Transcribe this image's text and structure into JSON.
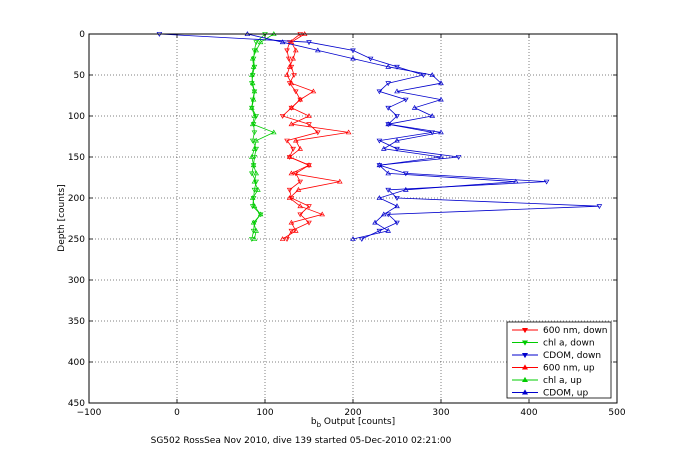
{
  "chart_data": {
    "type": "line",
    "xlabel_main": "b",
    "xlabel_sub": "b",
    "xlabel_rest": " Output [counts]",
    "ylabel": "Depth [counts]",
    "caption": "SG502 RossSea Nov 2010, dive 139 started 05-Dec-2010 02:21:00",
    "xlim": [
      -100,
      500
    ],
    "ylim": [
      0,
      450
    ],
    "y_reversed": true,
    "grid": true,
    "xticks": [
      -100,
      0,
      100,
      200,
      300,
      400,
      500
    ],
    "yticks": [
      0,
      50,
      100,
      150,
      200,
      250,
      300,
      350,
      400,
      450
    ],
    "legend_position": "bottom-right",
    "series": [
      {
        "name": "600 nm, down",
        "color": "#ff0000",
        "marker": "triangle-down",
        "y": [
          0,
          10,
          20,
          30,
          40,
          50,
          60,
          70,
          80,
          90,
          100,
          110,
          120,
          130,
          140,
          150,
          160,
          170,
          180,
          190,
          200,
          210,
          220,
          230,
          240,
          250
        ],
        "x": [
          140,
          128,
          125,
          127,
          130,
          133,
          128,
          135,
          140,
          130,
          120,
          150,
          160,
          125,
          132,
          128,
          150,
          135,
          140,
          128,
          130,
          150,
          140,
          150,
          130,
          125
        ]
      },
      {
        "name": "chl a, down",
        "color": "#00cc00",
        "marker": "triangle-down",
        "y": [
          0,
          10,
          20,
          30,
          40,
          50,
          60,
          70,
          80,
          90,
          100,
          110,
          120,
          130,
          140,
          150,
          160,
          170,
          180,
          190,
          200,
          210,
          220,
          230,
          240,
          250
        ],
        "x": [
          100,
          90,
          88,
          87,
          88,
          86,
          85,
          88,
          86,
          85,
          90,
          87,
          88,
          86,
          90,
          88,
          87,
          85,
          90,
          88,
          87,
          86,
          95,
          88,
          87,
          85
        ]
      },
      {
        "name": "CDOM, down",
        "color": "#0000cc",
        "marker": "triangle-down",
        "y": [
          0,
          10,
          20,
          30,
          40,
          50,
          60,
          70,
          80,
          90,
          100,
          110,
          120,
          130,
          140,
          150,
          160,
          170,
          180,
          190,
          200,
          210,
          220,
          230,
          240,
          250
        ],
        "x": [
          -20,
          150,
          200,
          220,
          250,
          280,
          240,
          230,
          260,
          240,
          250,
          240,
          290,
          230,
          250,
          320,
          230,
          260,
          420,
          240,
          250,
          480,
          240,
          250,
          230,
          210
        ]
      },
      {
        "name": "600 nm, up",
        "color": "#ff0000",
        "marker": "triangle-up",
        "y": [
          250,
          240,
          230,
          220,
          210,
          200,
          190,
          180,
          170,
          160,
          150,
          140,
          130,
          120,
          110,
          100,
          90,
          80,
          70,
          60,
          50,
          40,
          30,
          20,
          10,
          0
        ],
        "x": [
          120,
          135,
          130,
          165,
          140,
          128,
          138,
          185,
          130,
          150,
          128,
          140,
          135,
          195,
          130,
          150,
          130,
          140,
          155,
          130,
          125,
          128,
          132,
          135,
          130,
          145
        ]
      },
      {
        "name": "chl a, up",
        "color": "#00cc00",
        "marker": "triangle-up",
        "y": [
          250,
          240,
          230,
          220,
          210,
          200,
          190,
          180,
          170,
          160,
          150,
          140,
          130,
          120,
          110,
          100,
          90,
          80,
          70,
          60,
          50,
          40,
          30,
          20,
          10,
          0
        ],
        "x": [
          88,
          90,
          87,
          95,
          88,
          86,
          92,
          88,
          90,
          87,
          85,
          88,
          90,
          110,
          86,
          88,
          85,
          87,
          88,
          86,
          85,
          87,
          86,
          90,
          95,
          110
        ]
      },
      {
        "name": "CDOM, up",
        "color": "#0000cc",
        "marker": "triangle-up",
        "y": [
          250,
          240,
          230,
          220,
          210,
          200,
          190,
          180,
          170,
          160,
          150,
          140,
          130,
          120,
          110,
          100,
          90,
          80,
          70,
          60,
          50,
          40,
          30,
          20,
          10,
          0
        ],
        "x": [
          200,
          240,
          225,
          235,
          250,
          230,
          260,
          385,
          240,
          230,
          300,
          235,
          250,
          300,
          240,
          290,
          270,
          300,
          250,
          300,
          290,
          240,
          200,
          160,
          120,
          80
        ]
      }
    ]
  }
}
